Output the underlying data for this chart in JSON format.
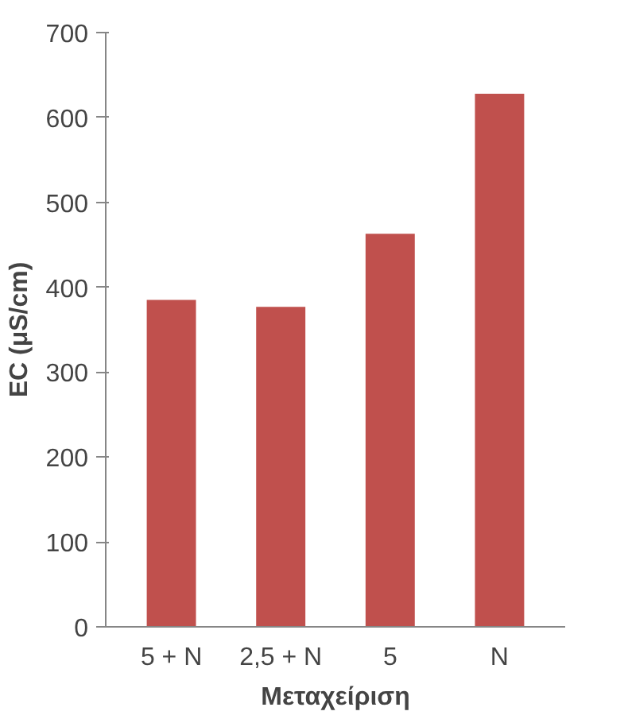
{
  "chart_data": {
    "type": "bar",
    "xlabel": "Μεταχείριση",
    "ylabel": "EC (μS/cm)",
    "categories": [
      "5 + N",
      "2,5 + N",
      "5",
      "N"
    ],
    "values": [
      385,
      377,
      463,
      628
    ],
    "color": "#c0504d",
    "ylim": [
      0,
      700
    ],
    "yticks": [
      0,
      100,
      200,
      300,
      400,
      500,
      600,
      700
    ],
    "grid": false
  }
}
